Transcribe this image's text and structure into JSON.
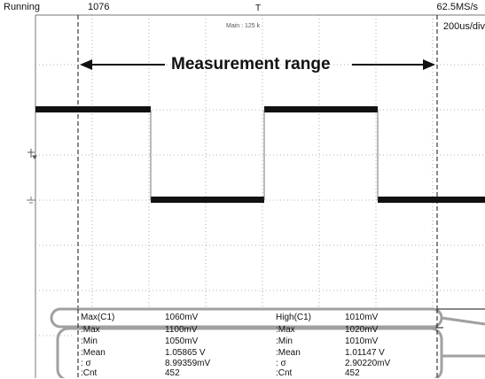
{
  "status": {
    "state": "Running",
    "acq_count": "1076",
    "sample_rate": "62.5MS/s",
    "time_div": "200us/div",
    "main_record": "Main : 125 k"
  },
  "annotation": {
    "range_label": "Measurement range"
  },
  "measurements": {
    "left": {
      "header": {
        "name": "Max(C1)",
        "value": "1060mV"
      },
      "rows": [
        {
          "name": ":Max",
          "value": "1100mV"
        },
        {
          "name": ":Min",
          "value": "1050mV"
        },
        {
          "name": ":Mean",
          "value": "1.05865 V"
        },
        {
          "name": ": σ",
          "value": "8.99359mV"
        },
        {
          "name": ":Cnt",
          "value": "452"
        }
      ]
    },
    "right": {
      "header": {
        "name": "High(C1)",
        "value": "1010mV"
      },
      "rows": [
        {
          "name": ":Max",
          "value": "1020mV"
        },
        {
          "name": ":Min",
          "value": "1010mV"
        },
        {
          "name": ":Mean",
          "value": "1.01147 V"
        },
        {
          "name": ": σ",
          "value": "2.90220mV"
        },
        {
          "name": ":Cnt",
          "value": "452"
        }
      ]
    }
  },
  "colors": {
    "trace": "#111111",
    "grid": "#9a9a9a",
    "highlight": "#a0a0a0"
  }
}
